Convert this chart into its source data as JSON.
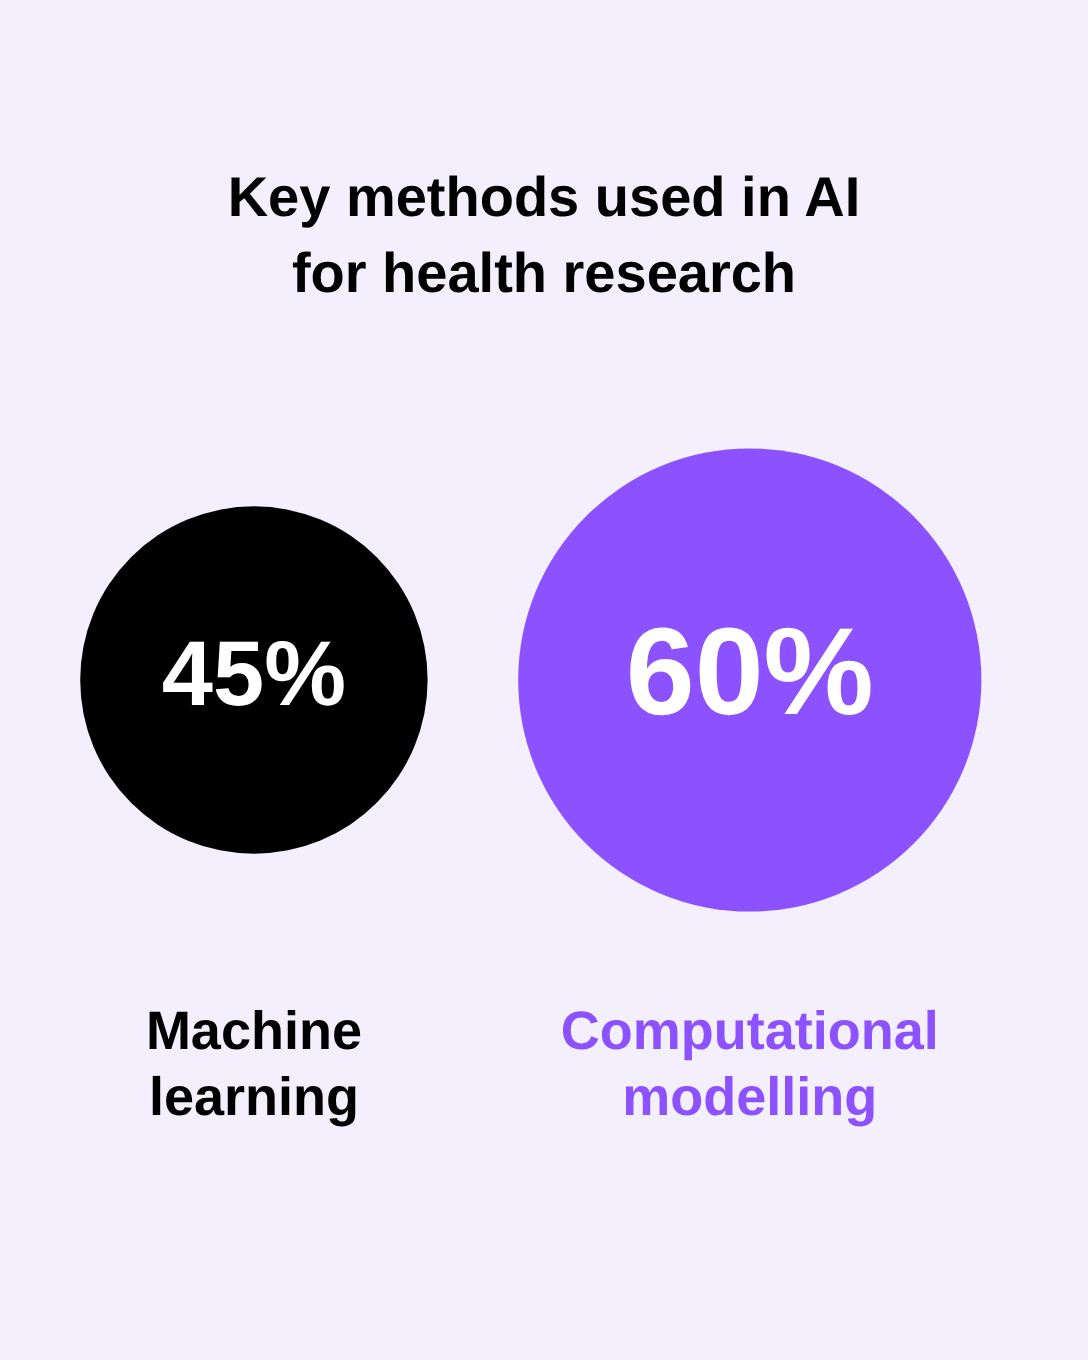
{
  "chart_data": {
    "type": "other",
    "title": "Key methods used in AI for health research",
    "categories": [
      "Machine learning",
      "Computational modelling"
    ],
    "values": [
      45,
      60
    ],
    "colors": [
      "#000000",
      "#8c52ff"
    ],
    "value_labels": [
      "45%",
      "60%"
    ]
  }
}
